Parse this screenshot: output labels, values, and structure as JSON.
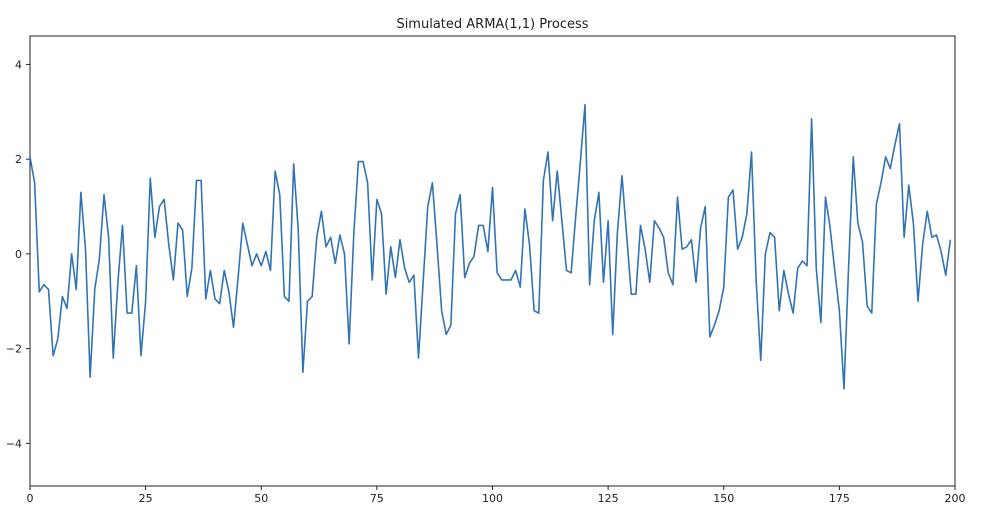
{
  "chart_data": {
    "type": "line",
    "title": "Simulated ARMA(1,1) Process",
    "xlabel": "",
    "ylabel": "",
    "xlim": [
      0,
      200
    ],
    "ylim": [
      -4.9,
      4.6
    ],
    "xticks": [
      0,
      25,
      50,
      75,
      100,
      125,
      150,
      175,
      200
    ],
    "yticks": [
      -4,
      -2,
      0,
      2,
      4
    ],
    "grid": false,
    "line_color": "#3274b3",
    "series": [
      {
        "values": [
          [
            0,
            2.05
          ],
          [
            1,
            1.5
          ],
          [
            2,
            -0.8
          ],
          [
            3,
            -0.65
          ],
          [
            4,
            -0.75
          ],
          [
            5,
            -2.15
          ],
          [
            6,
            -1.8
          ],
          [
            7,
            -0.9
          ],
          [
            8,
            -1.15
          ],
          [
            9,
            0.0
          ],
          [
            10,
            -0.75
          ],
          [
            11,
            1.3
          ],
          [
            12,
            0.1
          ],
          [
            13,
            -2.6
          ],
          [
            14,
            -0.75
          ],
          [
            15,
            -0.1
          ],
          [
            16,
            1.25
          ],
          [
            17,
            0.35
          ],
          [
            18,
            -2.2
          ],
          [
            19,
            -0.6
          ],
          [
            20,
            0.6
          ],
          [
            21,
            -1.25
          ],
          [
            22,
            -1.25
          ],
          [
            23,
            -0.25
          ],
          [
            24,
            -2.15
          ],
          [
            25,
            -1.0
          ],
          [
            26,
            1.6
          ],
          [
            27,
            0.35
          ],
          [
            28,
            1.0
          ],
          [
            29,
            1.15
          ],
          [
            30,
            0.2
          ],
          [
            31,
            -0.55
          ],
          [
            32,
            0.65
          ],
          [
            33,
            0.5
          ],
          [
            34,
            -0.9
          ],
          [
            35,
            -0.3
          ],
          [
            36,
            1.55
          ],
          [
            37,
            1.55
          ],
          [
            38,
            -0.95
          ],
          [
            39,
            -0.35
          ],
          [
            40,
            -0.95
          ],
          [
            41,
            -1.05
          ],
          [
            42,
            -0.35
          ],
          [
            43,
            -0.8
          ],
          [
            44,
            -1.55
          ],
          [
            45,
            -0.5
          ],
          [
            46,
            0.65
          ],
          [
            47,
            0.2
          ],
          [
            48,
            -0.25
          ],
          [
            49,
            0.0
          ],
          [
            50,
            -0.25
          ],
          [
            51,
            0.05
          ],
          [
            52,
            -0.35
          ],
          [
            53,
            1.75
          ],
          [
            54,
            1.25
          ],
          [
            55,
            -0.9
          ],
          [
            56,
            -1.0
          ],
          [
            57,
            1.9
          ],
          [
            58,
            0.5
          ],
          [
            59,
            -2.5
          ],
          [
            60,
            -1.0
          ],
          [
            61,
            -0.9
          ],
          [
            62,
            0.35
          ],
          [
            63,
            0.9
          ],
          [
            64,
            0.15
          ],
          [
            65,
            0.35
          ],
          [
            66,
            -0.2
          ],
          [
            67,
            0.4
          ],
          [
            68,
            0.0
          ],
          [
            69,
            -1.9
          ],
          [
            70,
            0.4
          ],
          [
            71,
            1.95
          ],
          [
            72,
            1.95
          ],
          [
            73,
            1.5
          ],
          [
            74,
            -0.55
          ],
          [
            75,
            1.15
          ],
          [
            76,
            0.85
          ],
          [
            77,
            -0.85
          ],
          [
            78,
            0.15
          ],
          [
            79,
            -0.5
          ],
          [
            80,
            0.3
          ],
          [
            81,
            -0.3
          ],
          [
            82,
            -0.6
          ],
          [
            83,
            -0.45
          ],
          [
            84,
            -2.2
          ],
          [
            85,
            -0.6
          ],
          [
            86,
            1.0
          ],
          [
            87,
            1.5
          ],
          [
            88,
            0.2
          ],
          [
            89,
            -1.2
          ],
          [
            90,
            -1.7
          ],
          [
            91,
            -1.5
          ],
          [
            92,
            0.85
          ],
          [
            93,
            1.25
          ],
          [
            94,
            -0.5
          ],
          [
            95,
            -0.2
          ],
          [
            96,
            -0.05
          ],
          [
            97,
            0.6
          ],
          [
            98,
            0.6
          ],
          [
            99,
            0.05
          ],
          [
            100,
            1.4
          ],
          [
            101,
            -0.4
          ],
          [
            102,
            -0.55
          ],
          [
            103,
            -0.55
          ],
          [
            104,
            -0.55
          ],
          [
            105,
            -0.35
          ],
          [
            106,
            -0.7
          ],
          [
            107,
            0.95
          ],
          [
            108,
            0.2
          ],
          [
            109,
            -1.2
          ],
          [
            110,
            -1.25
          ],
          [
            111,
            1.55
          ],
          [
            112,
            2.15
          ],
          [
            113,
            0.7
          ],
          [
            114,
            1.75
          ],
          [
            115,
            0.7
          ],
          [
            116,
            -0.35
          ],
          [
            117,
            -0.4
          ],
          [
            118,
            0.8
          ],
          [
            119,
            1.95
          ],
          [
            120,
            3.15
          ],
          [
            121,
            -0.65
          ],
          [
            122,
            0.7
          ],
          [
            123,
            1.3
          ],
          [
            124,
            -0.6
          ],
          [
            125,
            0.7
          ],
          [
            126,
            -1.7
          ],
          [
            127,
            0.45
          ],
          [
            128,
            1.65
          ],
          [
            129,
            0.4
          ],
          [
            130,
            -0.85
          ],
          [
            131,
            -0.85
          ],
          [
            132,
            0.6
          ],
          [
            133,
            0.1
          ],
          [
            134,
            -0.6
          ],
          [
            135,
            0.7
          ],
          [
            136,
            0.55
          ],
          [
            137,
            0.35
          ],
          [
            138,
            -0.4
          ],
          [
            139,
            -0.65
          ],
          [
            140,
            1.2
          ],
          [
            141,
            0.1
          ],
          [
            142,
            0.15
          ],
          [
            143,
            0.3
          ],
          [
            144,
            -0.6
          ],
          [
            145,
            0.55
          ],
          [
            146,
            1.0
          ],
          [
            147,
            -1.75
          ],
          [
            148,
            -1.5
          ],
          [
            149,
            -1.2
          ],
          [
            150,
            -0.7
          ],
          [
            151,
            1.2
          ],
          [
            152,
            1.35
          ],
          [
            153,
            0.1
          ],
          [
            154,
            0.35
          ],
          [
            155,
            0.85
          ],
          [
            156,
            2.15
          ],
          [
            157,
            -0.55
          ],
          [
            158,
            -2.25
          ],
          [
            159,
            0.0
          ],
          [
            160,
            0.45
          ],
          [
            161,
            0.35
          ],
          [
            162,
            -1.2
          ],
          [
            163,
            -0.35
          ],
          [
            164,
            -0.85
          ],
          [
            165,
            -1.25
          ],
          [
            166,
            -0.3
          ],
          [
            167,
            -0.15
          ],
          [
            168,
            -0.25
          ],
          [
            169,
            2.85
          ],
          [
            170,
            -0.3
          ],
          [
            171,
            -1.45
          ],
          [
            172,
            1.2
          ],
          [
            173,
            0.55
          ],
          [
            174,
            -0.35
          ],
          [
            175,
            -1.2
          ],
          [
            176,
            -2.85
          ],
          [
            177,
            -0.25
          ],
          [
            178,
            2.05
          ],
          [
            179,
            0.65
          ],
          [
            180,
            0.25
          ],
          [
            181,
            -1.1
          ],
          [
            182,
            -1.25
          ],
          [
            183,
            1.05
          ],
          [
            184,
            1.5
          ],
          [
            185,
            2.05
          ],
          [
            186,
            1.8
          ],
          [
            187,
            2.3
          ],
          [
            188,
            2.75
          ],
          [
            189,
            0.35
          ],
          [
            190,
            1.45
          ],
          [
            191,
            0.65
          ],
          [
            192,
            -1.0
          ],
          [
            193,
            0.2
          ],
          [
            194,
            0.9
          ],
          [
            195,
            0.35
          ],
          [
            196,
            0.4
          ],
          [
            197,
            0.05
          ],
          [
            198,
            -0.45
          ],
          [
            199,
            0.3
          ]
        ]
      }
    ]
  }
}
